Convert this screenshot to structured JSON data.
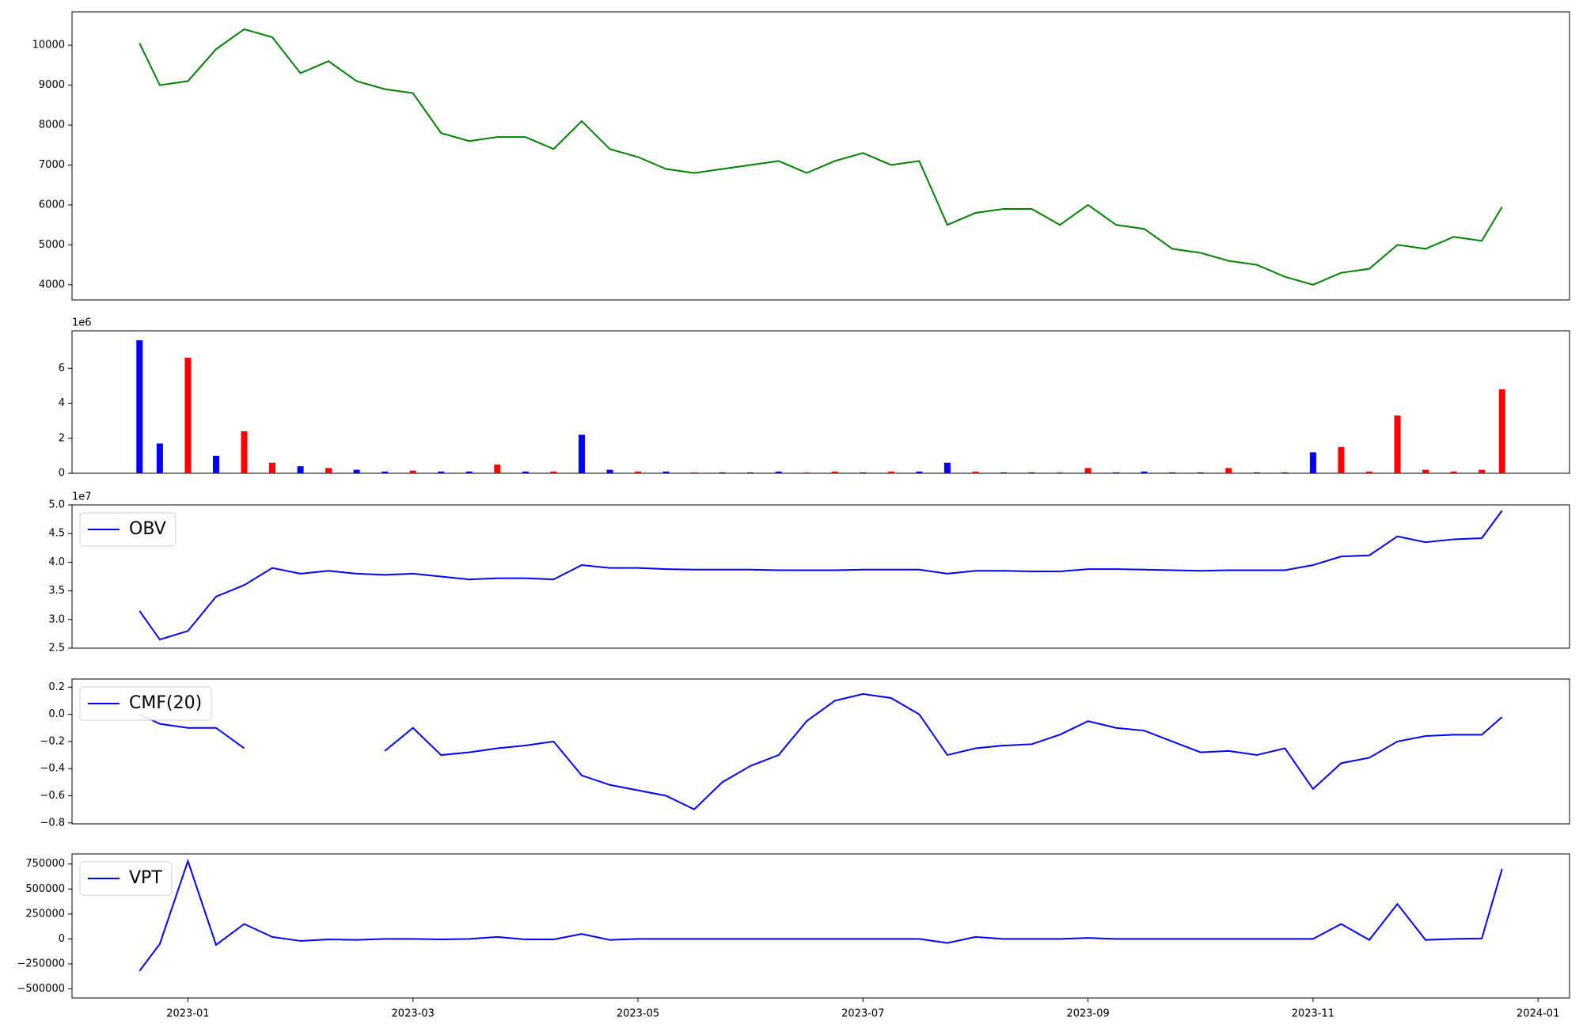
{
  "chart_data": [
    {
      "type": "line",
      "color": "#008000",
      "x": [
        -0.43,
        -0.25,
        0,
        0.25,
        0.5,
        0.75,
        1,
        1.25,
        1.5,
        1.75,
        2,
        2.25,
        2.5,
        2.75,
        3,
        3.25,
        3.5,
        3.75,
        4,
        4.25,
        4.5,
        4.75,
        5,
        5.25,
        5.5,
        5.75,
        6,
        6.25,
        6.5,
        6.75,
        7,
        7.25,
        7.5,
        7.75,
        8,
        8.25,
        8.5,
        8.75,
        9,
        9.25,
        9.5,
        9.75,
        10,
        10.25,
        10.5,
        10.75,
        11,
        11.25,
        11.5,
        11.68
      ],
      "values": [
        10050,
        9000,
        9100,
        9900,
        10400,
        10200,
        9300,
        9600,
        9100,
        8900,
        8800,
        7800,
        7600,
        7700,
        7700,
        7400,
        8100,
        7400,
        7200,
        6900,
        6800,
        6900,
        7000,
        7100,
        6800,
        7100,
        7300,
        7000,
        7100,
        5500,
        5800,
        5900,
        5900,
        5500,
        6000,
        5500,
        5400,
        4900,
        4800,
        4600,
        4500,
        4200,
        4000,
        4300,
        4400,
        5000,
        4900,
        5200,
        5100,
        5950
      ],
      "xlim": [
        -1.03,
        12.28
      ],
      "ylim": [
        3620,
        10835
      ],
      "yticks": [
        4000,
        5000,
        6000,
        7000,
        8000,
        9000,
        10000
      ]
    },
    {
      "type": "bar",
      "offset_label": "1e6",
      "x": [
        -0.43,
        -0.25,
        0,
        0.25,
        0.5,
        0.75,
        1,
        1.25,
        1.5,
        1.75,
        2,
        2.25,
        2.5,
        2.75,
        3,
        3.25,
        3.5,
        3.75,
        4,
        4.25,
        4.5,
        4.75,
        5,
        5.25,
        5.5,
        5.75,
        6,
        6.25,
        6.5,
        6.75,
        7,
        7.25,
        7.5,
        7.75,
        8,
        8.25,
        8.5,
        8.75,
        9,
        9.25,
        9.5,
        9.75,
        10,
        10.25,
        10.5,
        10.75,
        11,
        11.25,
        11.5,
        11.68
      ],
      "values": [
        7.6,
        1.7,
        6.6,
        1.0,
        2.4,
        0.6,
        0.4,
        0.3,
        0.2,
        0.1,
        0.15,
        0.1,
        0.1,
        0.5,
        0.1,
        0.1,
        2.2,
        0.2,
        0.1,
        0.1,
        0.05,
        0.05,
        0.05,
        0.1,
        0.05,
        0.1,
        0.05,
        0.1,
        0.1,
        0.6,
        0.1,
        0.05,
        0.05,
        0.05,
        0.3,
        0.05,
        0.1,
        0.05,
        0.05,
        0.3,
        0.05,
        0.05,
        1.2,
        1.5,
        0.1,
        3.3,
        0.2,
        0.1,
        0.2,
        4.8
      ],
      "colors": [
        "#0000ff",
        "#0000ff",
        "#ff0000",
        "#0000ff",
        "#ff0000",
        "#ff0000",
        "#0000ff",
        "#ff0000",
        "#0000ff",
        "#0000ff",
        "#ff0000",
        "#0000ff",
        "#0000ff",
        "#ff0000",
        "#0000ff",
        "#ff0000",
        "#0000ff",
        "#0000ff",
        "#ff0000",
        "#0000ff",
        "#ff0000",
        "#0000ff",
        "#0000ff",
        "#0000ff",
        "#ff0000",
        "#ff0000",
        "#0000ff",
        "#ff0000",
        "#0000ff",
        "#0000ff",
        "#ff0000",
        "#0000ff",
        "#0000ff",
        "#ff0000",
        "#ff0000",
        "#0000ff",
        "#0000ff",
        "#0000ff",
        "#0000ff",
        "#ff0000",
        "#0000ff",
        "#0000ff",
        "#0000ff",
        "#ff0000",
        "#ff0000",
        "#ff0000",
        "#ff0000",
        "#ff0000",
        "#ff0000",
        "#ff0000"
      ],
      "xlim": [
        -1.03,
        12.28
      ],
      "ylim": [
        0,
        8.14
      ],
      "yticks": [
        0,
        2,
        4,
        6
      ]
    },
    {
      "type": "line",
      "offset_label": "1e7",
      "legend": "upper left",
      "x": [
        -0.43,
        -0.25,
        0,
        0.25,
        0.5,
        0.75,
        1,
        1.25,
        1.5,
        1.75,
        2,
        2.25,
        2.5,
        2.75,
        3,
        3.25,
        3.5,
        3.75,
        4,
        4.25,
        4.5,
        4.75,
        5,
        5.25,
        5.5,
        5.75,
        6,
        6.25,
        6.5,
        6.75,
        7,
        7.25,
        7.5,
        7.75,
        8,
        8.25,
        8.5,
        8.75,
        9,
        9.25,
        9.5,
        9.75,
        10,
        10.25,
        10.5,
        10.75,
        11,
        11.25,
        11.5,
        11.68
      ],
      "series": [
        {
          "name": "OBV",
          "color": "#0000ff",
          "values": [
            3.15,
            2.65,
            2.8,
            3.4,
            3.6,
            3.9,
            3.8,
            3.85,
            3.8,
            3.78,
            3.8,
            3.75,
            3.7,
            3.72,
            3.72,
            3.7,
            3.95,
            3.9,
            3.9,
            3.88,
            3.87,
            3.87,
            3.87,
            3.86,
            3.86,
            3.86,
            3.87,
            3.87,
            3.87,
            3.8,
            3.85,
            3.85,
            3.84,
            3.84,
            3.88,
            3.88,
            3.87,
            3.86,
            3.85,
            3.86,
            3.86,
            3.86,
            3.95,
            4.1,
            4.12,
            4.45,
            4.35,
            4.4,
            4.42,
            4.9
          ]
        }
      ],
      "xlim": [
        -1.03,
        12.28
      ],
      "ylim": [
        2.5,
        5.0
      ],
      "yticks": [
        2.5,
        {
          "value": 3,
          "label": "3.0"
        },
        3.5,
        {
          "value": 4,
          "label": "4.0"
        },
        4.5,
        {
          "value": 5,
          "label": "5.0"
        }
      ]
    },
    {
      "type": "line",
      "legend": "upper left",
      "x": [
        -0.43,
        -0.25,
        0,
        0.25,
        0.5,
        0.75,
        1,
        1.25,
        1.5,
        1.75,
        2,
        2.25,
        2.5,
        2.75,
        3,
        3.25,
        3.5,
        3.75,
        4,
        4.25,
        4.5,
        4.75,
        5,
        5.25,
        5.5,
        5.75,
        6,
        6.25,
        6.5,
        6.75,
        7,
        7.25,
        7.5,
        7.75,
        8,
        8.25,
        8.5,
        8.75,
        9,
        9.25,
        9.5,
        9.75,
        10,
        10.25,
        10.5,
        10.75,
        11,
        11.25,
        11.5,
        11.68
      ],
      "series": [
        {
          "name": "CMF(20)",
          "color": "#0000ff",
          "values": [
            0.0,
            -0.07,
            -0.1,
            -0.1,
            -0.25,
            null,
            null,
            null,
            null,
            -0.27,
            -0.1,
            -0.3,
            -0.28,
            -0.25,
            -0.23,
            -0.2,
            -0.45,
            -0.52,
            -0.56,
            -0.6,
            -0.7,
            -0.5,
            -0.38,
            -0.3,
            -0.05,
            0.1,
            0.15,
            0.12,
            0.0,
            -0.3,
            -0.25,
            -0.23,
            -0.22,
            -0.15,
            -0.05,
            -0.1,
            -0.12,
            -0.2,
            -0.28,
            -0.27,
            -0.3,
            -0.25,
            -0.55,
            -0.36,
            -0.32,
            -0.2,
            -0.16,
            -0.15,
            -0.15,
            -0.02
          ]
        }
      ],
      "xlim": [
        -1.03,
        12.28
      ],
      "ylim": [
        -0.807,
        0.26
      ],
      "yticks": [
        {
          "value": -0.8,
          "label": "−0.8"
        },
        {
          "value": -0.6,
          "label": "−0.6"
        },
        {
          "value": -0.4,
          "label": "−0.4"
        },
        {
          "value": -0.2,
          "label": "−0.2"
        },
        {
          "value": 0,
          "label": "0.0"
        },
        0.2
      ]
    },
    {
      "type": "line",
      "legend": "upper left",
      "x": [
        -0.43,
        -0.25,
        0,
        0.25,
        0.5,
        0.75,
        1,
        1.25,
        1.5,
        1.75,
        2,
        2.25,
        2.5,
        2.75,
        3,
        3.25,
        3.5,
        3.75,
        4,
        4.25,
        4.5,
        4.75,
        5,
        5.25,
        5.5,
        5.75,
        6,
        6.25,
        6.5,
        6.75,
        7,
        7.25,
        7.5,
        7.75,
        8,
        8.25,
        8.5,
        8.75,
        9,
        9.25,
        9.5,
        9.75,
        10,
        10.25,
        10.5,
        10.75,
        11,
        11.25,
        11.5,
        11.68
      ],
      "series": [
        {
          "name": "VPT",
          "color": "#0000ff",
          "values": [
            -320000,
            -50000,
            780000,
            -60000,
            150000,
            20000,
            -20000,
            -5000,
            -10000,
            0,
            0,
            -5000,
            0,
            20000,
            -5000,
            -5000,
            50000,
            -10000,
            0,
            0,
            0,
            0,
            0,
            0,
            0,
            0,
            0,
            0,
            0,
            -40000,
            20000,
            0,
            0,
            0,
            10000,
            0,
            0,
            0,
            0,
            0,
            0,
            0,
            0,
            150000,
            -10000,
            350000,
            -10000,
            0,
            5000,
            700000
          ]
        }
      ],
      "xlim": [
        -1.03,
        12.28
      ],
      "ylim": [
        -591000,
        851000
      ],
      "yticks": [
        {
          "value": -500000,
          "label": "−500000"
        },
        {
          "value": -250000,
          "label": "−250000"
        },
        0,
        250000,
        500000,
        750000
      ],
      "xticks": [
        {
          "value": 0,
          "label": "2023-01"
        },
        {
          "value": 2,
          "label": "2023-03"
        },
        {
          "value": 4,
          "label": "2023-05"
        },
        {
          "value": 6,
          "label": "2023-07"
        },
        {
          "value": 8,
          "label": "2023-09"
        },
        {
          "value": 10,
          "label": "2023-11"
        },
        {
          "value": 12,
          "label": "2024-01"
        }
      ]
    }
  ]
}
